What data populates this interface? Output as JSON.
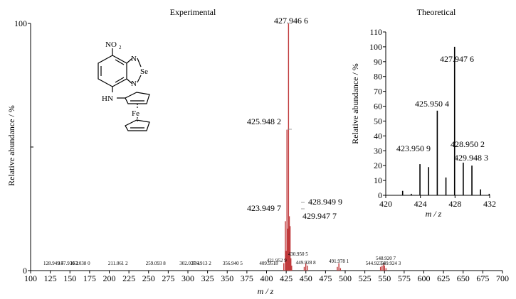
{
  "chart_data": [
    {
      "type": "bar",
      "title": "Experimental",
      "xlabel": "m / z",
      "ylabel": "Relative abundance / %",
      "xlim": [
        100,
        700
      ],
      "ylim": [
        0,
        100
      ],
      "x_ticks": [
        "100",
        "125",
        "150",
        "175",
        "200",
        "225",
        "250",
        "275",
        "300",
        "325",
        "350",
        "375",
        "400",
        "425",
        "450",
        "475",
        "500",
        "525",
        "550",
        "575",
        "600",
        "625",
        "650",
        "675",
        "700"
      ],
      "y_ticks": [
        "0",
        "100"
      ],
      "grid": false,
      "series": [
        {
          "color": "#c0393b",
          "peaks": [
            {
              "x": 421.95,
              "y": 3
            },
            {
              "x": 423.95,
              "y": 20
            },
            {
              "x": 424.95,
              "y": 8
            },
            {
              "x": 425.95,
              "y": 57
            },
            {
              "x": 426.95,
              "y": 17
            },
            {
              "x": 427.95,
              "y": 100
            },
            {
              "x": 428.95,
              "y": 22
            },
            {
              "x": 429.95,
              "y": 18
            },
            {
              "x": 430.95,
              "y": 5
            },
            {
              "x": 431.95,
              "y": 2
            },
            {
              "x": 447.93,
              "y": 1.5
            },
            {
              "x": 449.93,
              "y": 3
            },
            {
              "x": 451.93,
              "y": 2
            },
            {
              "x": 489.98,
              "y": 1.5
            },
            {
              "x": 491.98,
              "y": 3
            },
            {
              "x": 493.98,
              "y": 1
            },
            {
              "x": 544.92,
              "y": 1.5
            },
            {
              "x": 546.92,
              "y": 2
            },
            {
              "x": 548.92,
              "y": 3
            },
            {
              "x": 549.92,
              "y": 2
            },
            {
              "x": 551.92,
              "y": 1
            }
          ]
        }
      ],
      "peak_labels": [
        {
          "x": 427.9466,
          "text": "427.946 6"
        },
        {
          "x": 425.9482,
          "text": "425.948 2"
        },
        {
          "x": 428.9499,
          "text": "428.949 9"
        },
        {
          "x": 423.9497,
          "text": "423.949 7"
        },
        {
          "x": 429.9477,
          "text": "429.947 7"
        }
      ],
      "small_labels": [
        {
          "x": 128.9495,
          "text": "128.949 5"
        },
        {
          "x": 147.9302,
          "text": "147.930 2"
        },
        {
          "x": 163.038,
          "text": "163.038 0"
        },
        {
          "x": 211.0612,
          "text": "211.061 2"
        },
        {
          "x": 259.0938,
          "text": "259.093 8"
        },
        {
          "x": 302.0374,
          "text": "302.037 4"
        },
        {
          "x": 316.9132,
          "text": "316.913 2"
        },
        {
          "x": 356.9405,
          "text": "356.940 5"
        },
        {
          "x": 409.9518,
          "text": "409.9518"
        },
        {
          "x": 421.9529,
          "text": "421.952 9"
        },
        {
          "x": 430.9505,
          "text": "430.950 5"
        },
        {
          "x": 449.9288,
          "text": "449.928 8"
        },
        {
          "x": 491.9781,
          "text": "491.978 1"
        },
        {
          "x": 544.9236,
          "text": "544.923 6"
        },
        {
          "x": 548.9207,
          "text": "548.920 7"
        },
        {
          "x": 549.9243,
          "text": "549.924 3"
        }
      ]
    },
    {
      "type": "bar",
      "title": "Theoretical",
      "xlabel": "m / z",
      "ylabel": "Relative abundance / %",
      "xlim": [
        420,
        432
      ],
      "ylim": [
        0,
        110
      ],
      "x_ticks": [
        "420",
        "424",
        "428",
        "432"
      ],
      "y_ticks": [
        "0",
        "10",
        "20",
        "30",
        "40",
        "50",
        "60",
        "70",
        "80",
        "90",
        "100",
        "110"
      ],
      "grid": false,
      "series": [
        {
          "color": "#000000",
          "peaks": [
            {
              "x": 421.95,
              "y": 3
            },
            {
              "x": 422.95,
              "y": 1
            },
            {
              "x": 423.95,
              "y": 21
            },
            {
              "x": 424.95,
              "y": 19
            },
            {
              "x": 425.95,
              "y": 57
            },
            {
              "x": 426.95,
              "y": 12
            },
            {
              "x": 427.95,
              "y": 100
            },
            {
              "x": 428.95,
              "y": 22
            },
            {
              "x": 429.95,
              "y": 20
            },
            {
              "x": 430.95,
              "y": 4
            },
            {
              "x": 431.95,
              "y": 1
            }
          ]
        }
      ],
      "peak_labels": [
        {
          "x": 427.9476,
          "text": "427.947 6"
        },
        {
          "x": 425.9504,
          "text": "425.950 4"
        },
        {
          "x": 423.9509,
          "text": "423.950 9"
        },
        {
          "x": 428.9502,
          "text": "428.950 2"
        },
        {
          "x": 429.9483,
          "text": "429.948 3"
        }
      ]
    }
  ],
  "structure": {
    "nitro": "NO",
    "nitro_sub": "2",
    "n1": "N",
    "n2": "N",
    "se": "Se",
    "nh": "HN",
    "fe": "Fe"
  }
}
